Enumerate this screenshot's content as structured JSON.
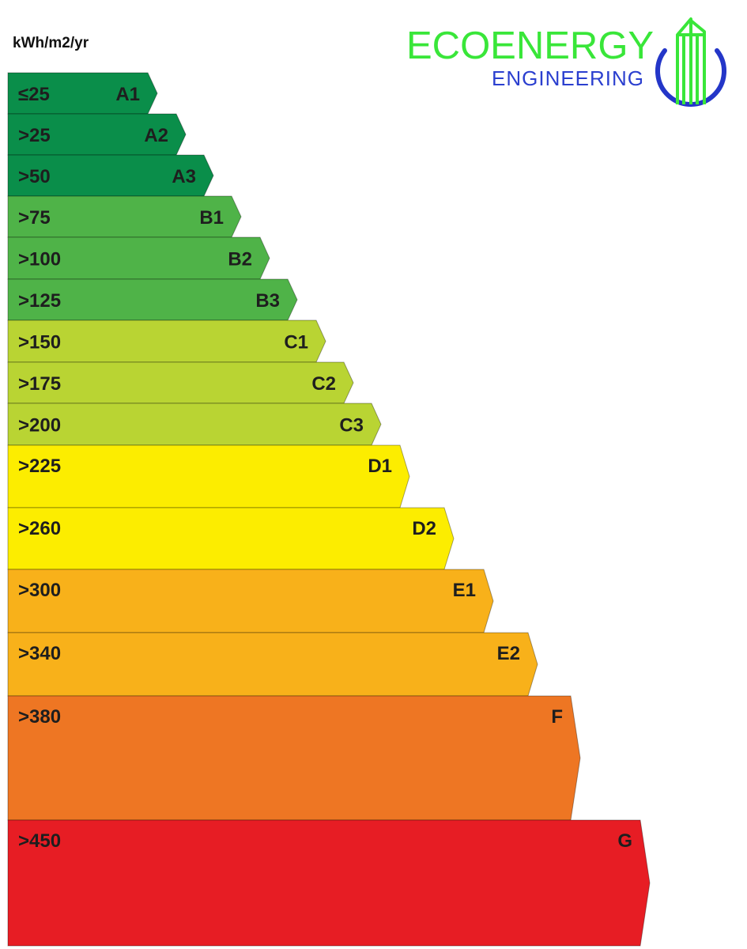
{
  "unit_label": "kWh/m2/yr",
  "logo": {
    "brand": "ECOENERGY",
    "sub": "ENGINEERING",
    "brand_color": "#39e639",
    "sub_color": "#2b3fcf",
    "ring_color": "#2436c8"
  },
  "chart_data": {
    "type": "bar",
    "categories": [
      "A1",
      "A2",
      "A3",
      "B1",
      "B2",
      "B3",
      "C1",
      "C2",
      "C3",
      "D1",
      "D2",
      "E1",
      "E2",
      "F",
      "G"
    ],
    "thresholds": [
      "≤25",
      ">25",
      ">50",
      ">75",
      ">100",
      ">125",
      ">150",
      ">175",
      ">200",
      ">225",
      ">260",
      ">300",
      ">340",
      ">380",
      ">450"
    ],
    "colors": [
      "#0a8e4a",
      "#0a8e4a",
      "#0a8e4a",
      "#4fb348",
      "#4fb348",
      "#4fb348",
      "#b9d433",
      "#b9d433",
      "#b9d433",
      "#fced00",
      "#fced00",
      "#f8b11a",
      "#f8b11a",
      "#ee7623",
      "#e71d24"
    ],
    "title": "",
    "xlabel": "",
    "ylabel": "kWh/m2/yr"
  }
}
